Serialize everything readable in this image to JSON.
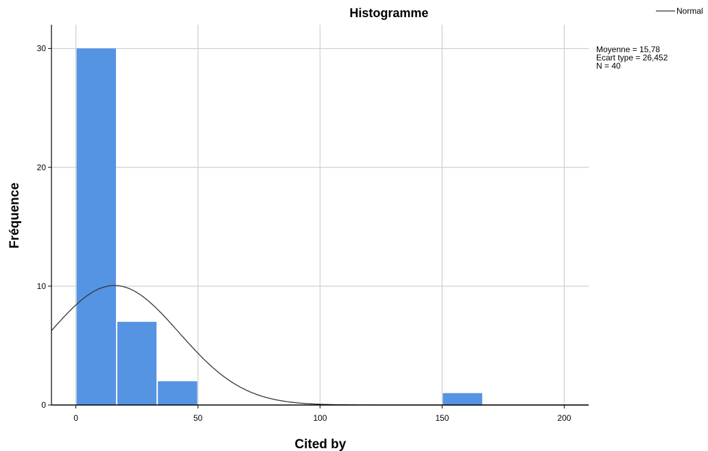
{
  "chart_data": {
    "type": "bar",
    "title": "Histogramme",
    "xlabel": "Cited by",
    "ylabel": "Fréquence",
    "xlim": [
      -10,
      210
    ],
    "ylim": [
      0,
      32
    ],
    "x_ticks": [
      0,
      50,
      100,
      150,
      200
    ],
    "y_ticks": [
      0,
      10,
      20,
      30
    ],
    "grid": true,
    "bars": [
      {
        "x0": 0,
        "x1": 16.7,
        "value": 30
      },
      {
        "x0": 16.7,
        "x1": 33.3,
        "value": 7
      },
      {
        "x0": 33.3,
        "x1": 50,
        "value": 2
      },
      {
        "x0": 150,
        "x1": 166.7,
        "value": 1
      }
    ],
    "normal_curve": {
      "name": "Normal",
      "mean": 15.78,
      "sd": 26.452,
      "n": 40,
      "bin_width": 16.67
    },
    "legend": {
      "position": "top-right",
      "entries": [
        "Normal"
      ]
    },
    "stats": [
      "Moyenne = 15,78",
      "Ecart type = 26,452",
      "N = 40"
    ],
    "colors": {
      "bar": "#5593e3",
      "curve": "#333333",
      "grid": "#cfcfcf",
      "axis": "#000000"
    }
  }
}
